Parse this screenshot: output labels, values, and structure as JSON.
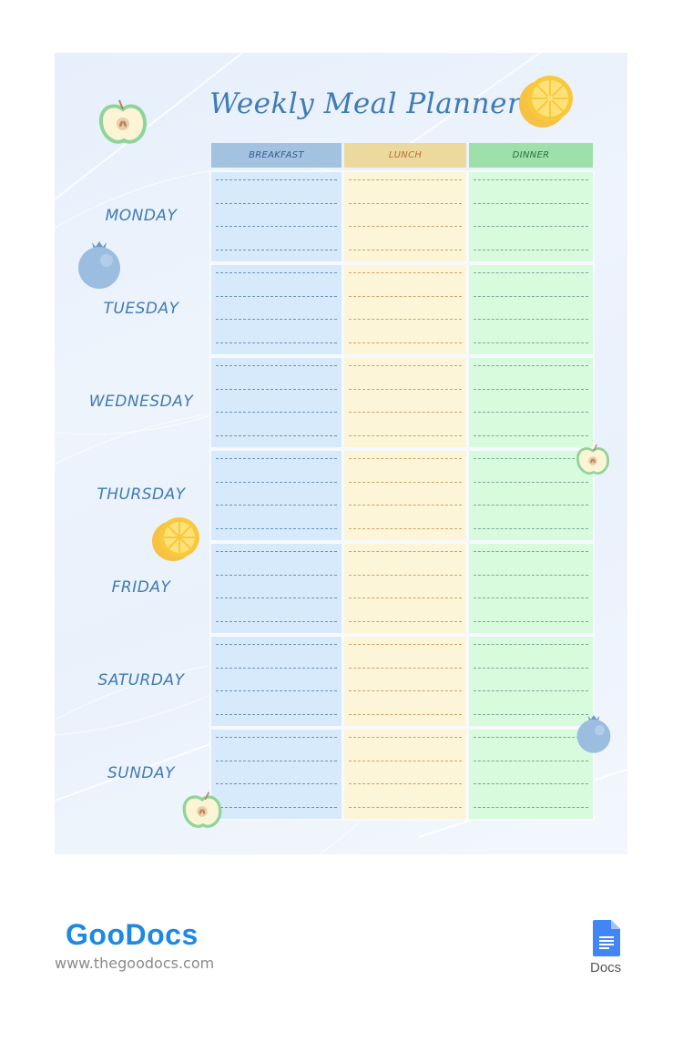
{
  "document": {
    "title": "Weekly Meal Planner",
    "columns": [
      {
        "key": "breakfast",
        "label": "BREAKFAST",
        "header_color": "#a3c2e0",
        "cell_color": "#d7eafc",
        "text_color": "#2f5d8e"
      },
      {
        "key": "lunch",
        "label": "LUNCH",
        "header_color": "#ecd99e",
        "cell_color": "#fdf5d8",
        "text_color": "#b5702a"
      },
      {
        "key": "dinner",
        "label": "DINNER",
        "header_color": "#9ee0a9",
        "cell_color": "#d8fadd",
        "text_color": "#2e6b44"
      }
    ],
    "days": [
      "MONDAY",
      "TUESDAY",
      "WEDNESDAY",
      "THURSDAY",
      "FRIDAY",
      "SATURDAY",
      "SUNDAY"
    ],
    "lines_per_cell": 4,
    "decorations": [
      "apple-icon",
      "orange-slice-icon",
      "blueberry-icon",
      "orange-slice-icon",
      "apple-icon",
      "blueberry-icon",
      "apple-icon"
    ],
    "accent_color": "#3f7bb5"
  },
  "footer": {
    "brand": "GooDocs",
    "url": "www.thegoodocs.com",
    "app_label": "Docs"
  }
}
